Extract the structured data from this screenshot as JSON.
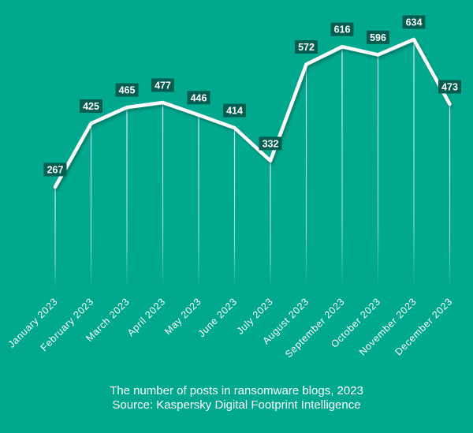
{
  "chart_data": {
    "type": "line",
    "categories": [
      "January 2023",
      "February 2023",
      "March 2023",
      "April 2023",
      "May 2023",
      "June 2023",
      "July 2023",
      "August 2023",
      "September 2023",
      "October 2023",
      "November 2023",
      "December 2023"
    ],
    "series": [
      {
        "values": [
          267,
          425,
          465,
          477,
          446,
          414,
          332,
          572,
          616,
          596,
          634,
          473
        ]
      }
    ],
    "title": "The number of posts in ransomware blogs, 2023",
    "subtitle": "Source: Kaspersky Digital Footprint Intelligence",
    "xlabel": "",
    "ylabel": "",
    "ylim": [
      0,
      700
    ],
    "grid": false,
    "legend": "none",
    "data_labels": true
  },
  "colors": {
    "background": "#00A88E",
    "line": "#ffffff",
    "label_box": "#035E50",
    "label_text": "#ffffff",
    "drop_line": "#ffffff"
  }
}
